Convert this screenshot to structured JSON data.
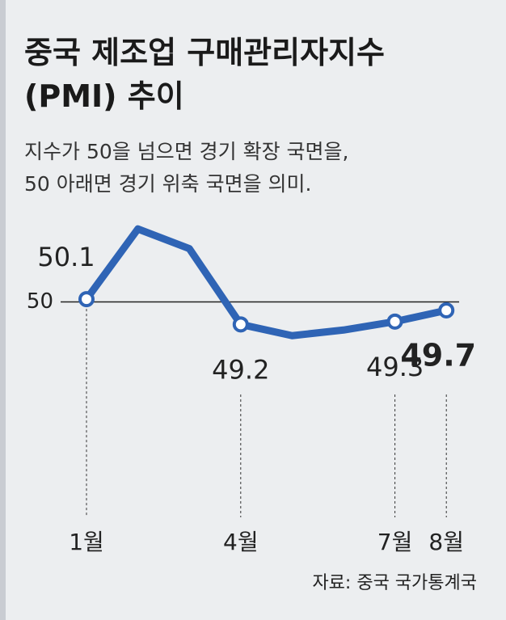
{
  "chart_data": {
    "type": "line",
    "title": "중국 제조업 구매관리자지수 (PMI) 추이",
    "subtitle": [
      "지수가 50을 넘으면 경기 확장 국면을,",
      "50 아래면 경기 위축 국면을 의미."
    ],
    "categories": [
      "1월",
      null,
      null,
      "4월",
      null,
      null,
      "7월",
      "8월"
    ],
    "series": [
      {
        "color": "#2f64b5",
        "values": [
          50.1,
          52.6,
          51.9,
          49.2,
          48.8,
          49.0,
          49.3,
          49.7
        ]
      }
    ],
    "ylim": [
      48,
      53.5
    ],
    "yticks": [
      50
    ],
    "source": "자료: 중국 국가통계국"
  }
}
